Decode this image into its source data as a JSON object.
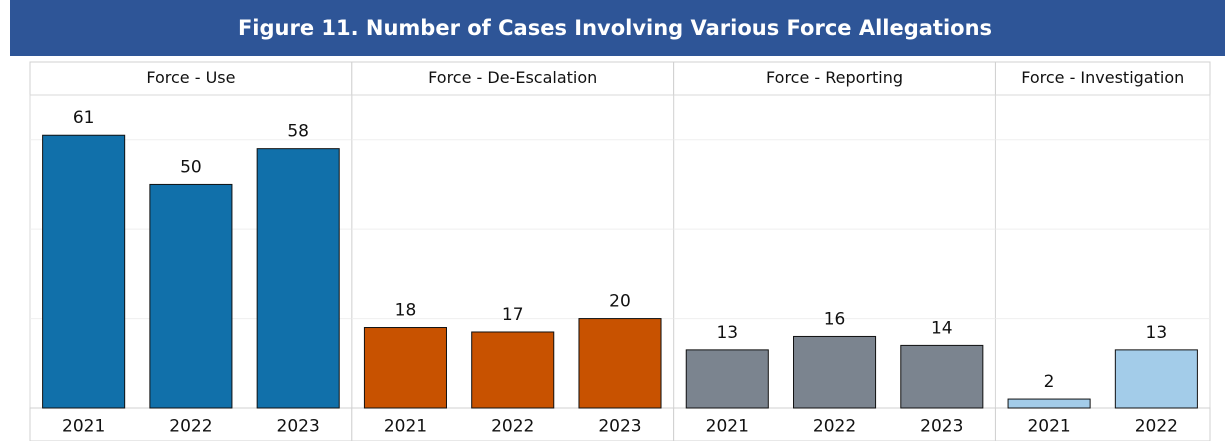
{
  "chart_data": {
    "type": "bar",
    "title": "Figure 11. Number of Cases Involving Various Force Allegations",
    "panels": [
      {
        "name": "Force - Use",
        "categories": [
          "2021",
          "2022",
          "2023"
        ],
        "values": [
          61,
          50,
          58
        ],
        "color": "#1170aa"
      },
      {
        "name": "Force - De-Escalation",
        "categories": [
          "2021",
          "2022",
          "2023"
        ],
        "values": [
          18,
          17,
          20
        ],
        "color": "#c85200"
      },
      {
        "name": "Force - Reporting",
        "categories": [
          "2021",
          "2022",
          "2023"
        ],
        "values": [
          13,
          16,
          14
        ],
        "color": "#7b848f"
      },
      {
        "name": "Force - Investigation",
        "categories": [
          "2021",
          "2022"
        ],
        "values": [
          2,
          13
        ],
        "color": "#a3cce9"
      }
    ],
    "ylim": [
      0,
      70
    ],
    "yticks": [
      0,
      20,
      40,
      60
    ],
    "grid": true
  }
}
